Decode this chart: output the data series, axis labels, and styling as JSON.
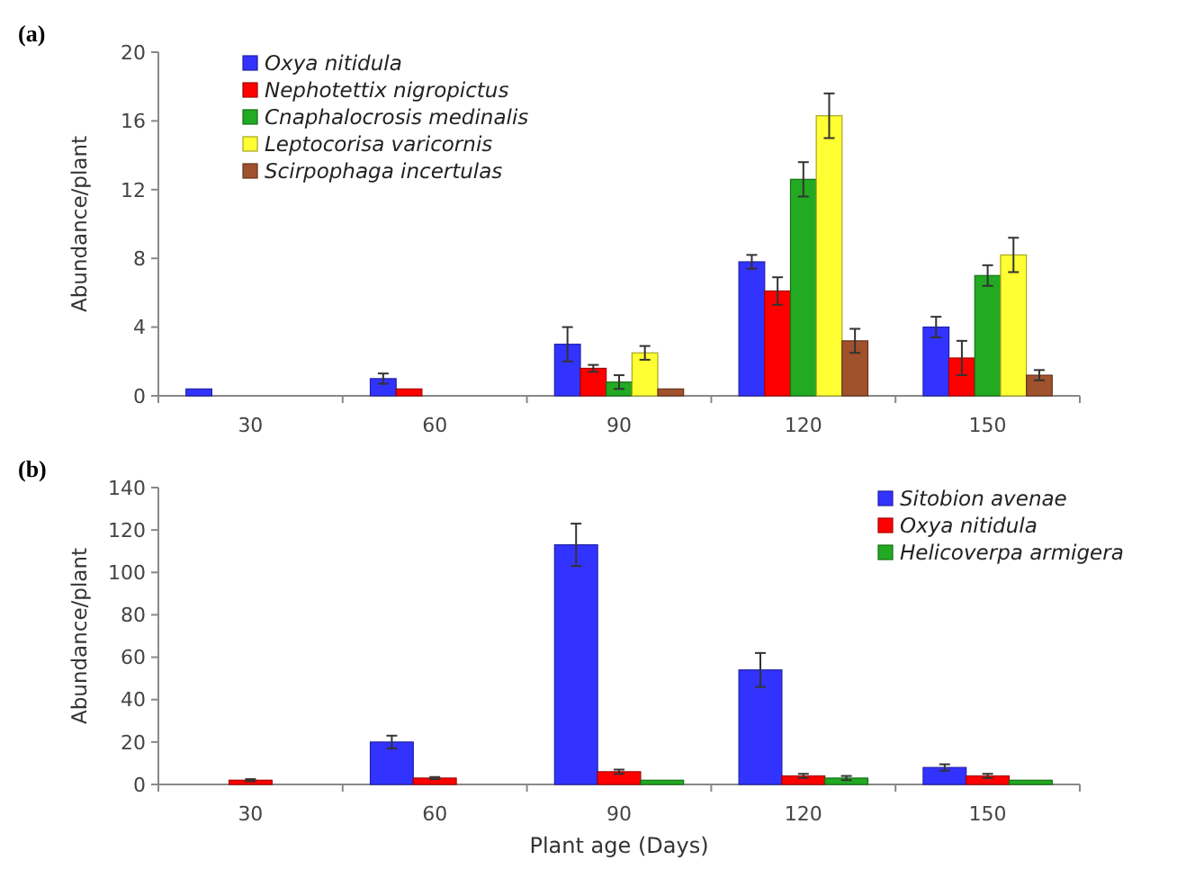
{
  "chart_data": [
    {
      "type": "bar",
      "annotations": [
        "(a)"
      ],
      "ylabel": "Abundance/plant",
      "categories": [
        "30",
        "60",
        "90",
        "120",
        "150"
      ],
      "ylim": [
        0,
        20
      ],
      "yticks": [
        0,
        4,
        8,
        12,
        16,
        20
      ],
      "legend": "top left",
      "grid": false,
      "series": [
        {
          "name": "Oxya nitidula",
          "color": "#3333ff",
          "values": [
            0.4,
            1.0,
            3.0,
            7.8,
            4.0
          ],
          "errors": [
            null,
            0.3,
            1.0,
            0.4,
            0.6
          ]
        },
        {
          "name": "Nephotettix nigropictus",
          "color": "#ff0000",
          "values": [
            null,
            0.4,
            1.6,
            6.1,
            2.2
          ],
          "errors": [
            null,
            null,
            0.2,
            0.8,
            1.0
          ]
        },
        {
          "name": "Cnaphalocrosis medinalis",
          "color": "#22aa22",
          "values": [
            null,
            null,
            0.8,
            12.6,
            7.0
          ],
          "errors": [
            null,
            null,
            0.4,
            1.0,
            0.6
          ]
        },
        {
          "name": "Leptocorisa varicornis",
          "color": "#ffff33",
          "values": [
            null,
            null,
            2.5,
            16.3,
            8.2
          ],
          "errors": [
            null,
            null,
            0.4,
            1.3,
            1.0
          ]
        },
        {
          "name": "Scirpophaga incertulas",
          "color": "#a0522d",
          "values": [
            null,
            null,
            0.4,
            3.2,
            1.2
          ],
          "errors": [
            null,
            null,
            null,
            0.7,
            0.3
          ]
        }
      ]
    },
    {
      "type": "bar",
      "annotations": [
        "(b)"
      ],
      "ylabel": "Abundance/plant",
      "xlabel": "Plant age (Days)",
      "categories": [
        "30",
        "60",
        "90",
        "120",
        "150"
      ],
      "ylim": [
        0,
        140
      ],
      "yticks": [
        0,
        20,
        40,
        60,
        80,
        100,
        120,
        140
      ],
      "legend": "top right",
      "grid": false,
      "series": [
        {
          "name": "Sitobion avenae",
          "color": "#3333ff",
          "values": [
            null,
            20,
            113,
            54,
            8
          ],
          "errors": [
            null,
            3,
            10,
            8,
            1.5
          ]
        },
        {
          "name": "Oxya nitidula",
          "color": "#ff0000",
          "values": [
            2,
            3,
            6,
            4,
            4
          ],
          "errors": [
            0.5,
            0.5,
            1,
            1,
            1
          ]
        },
        {
          "name": "Helicoverpa armigera",
          "color": "#22aa22",
          "values": [
            null,
            null,
            2,
            3,
            2
          ],
          "errors": [
            null,
            null,
            null,
            1,
            null
          ]
        }
      ]
    }
  ]
}
